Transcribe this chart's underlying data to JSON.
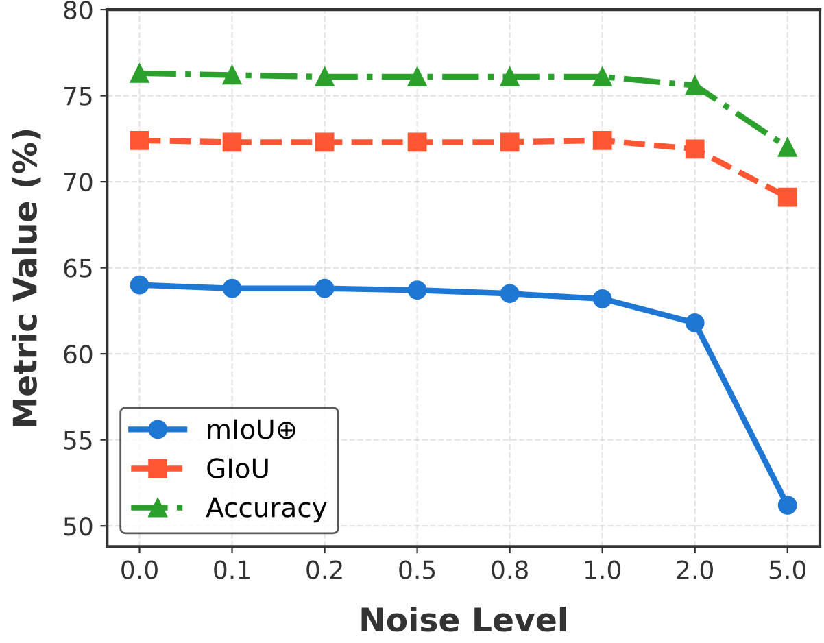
{
  "chart_data": {
    "type": "line",
    "xlabel": "Noise Level",
    "ylabel": "Metric Value (%)",
    "categories": [
      "0.0",
      "0.1",
      "0.2",
      "0.5",
      "0.8",
      "1.0",
      "2.0",
      "5.0"
    ],
    "ylim": [
      48.8,
      80
    ],
    "yticks": [
      50,
      55,
      60,
      65,
      70,
      75,
      80
    ],
    "grid": true,
    "legend": "bottom left",
    "series": [
      {
        "name": "mIoU⊕",
        "color": "#1f77d4",
        "marker": "circle",
        "line_style": "solid",
        "values": [
          64.0,
          63.8,
          63.8,
          63.7,
          63.5,
          63.2,
          61.8,
          51.2
        ]
      },
      {
        "name": "GIoU",
        "color": "#ff5733",
        "marker": "square",
        "line_style": "dashed",
        "values": [
          72.4,
          72.3,
          72.3,
          72.3,
          72.3,
          72.4,
          71.9,
          69.1
        ]
      },
      {
        "name": "Accuracy",
        "color": "#2ca02c",
        "marker": "triangle",
        "line_style": "dashdot",
        "values": [
          76.3,
          76.2,
          76.1,
          76.1,
          76.1,
          76.1,
          75.6,
          72.0
        ]
      }
    ]
  }
}
